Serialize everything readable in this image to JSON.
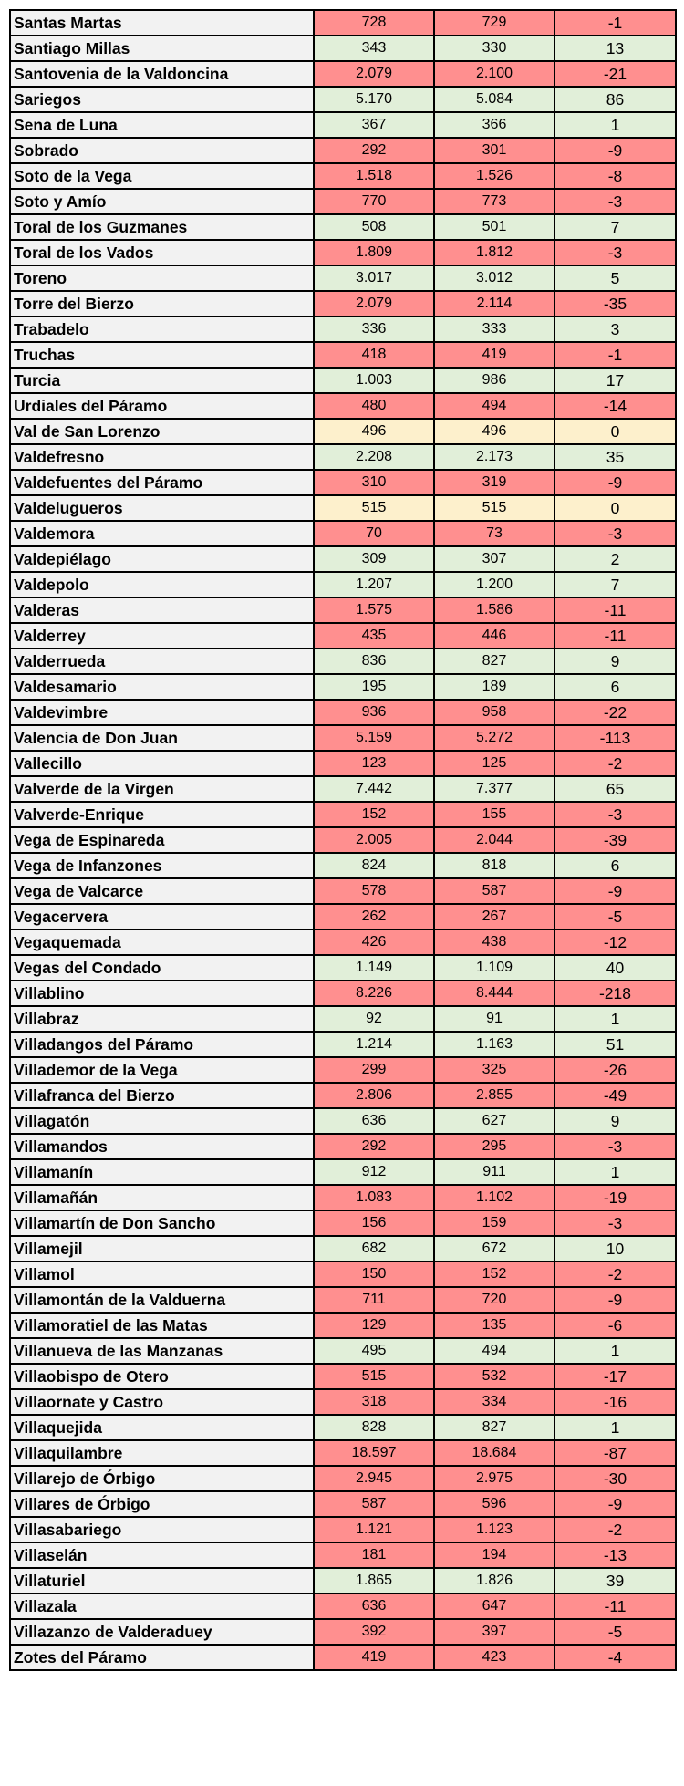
{
  "colors": {
    "negative": "#ff8f8f",
    "positive": "#e1efd9",
    "zero": "#fdf0cc",
    "name_cell": "#f2f2f2"
  },
  "rows": [
    {
      "name": "Santas Martas",
      "a": "728",
      "b": "729",
      "d": "-1",
      "t": "neg"
    },
    {
      "name": "Santiago Millas",
      "a": "343",
      "b": "330",
      "d": "13",
      "t": "pos"
    },
    {
      "name": "Santovenia de la Valdoncina",
      "a": "2.079",
      "b": "2.100",
      "d": "-21",
      "t": "neg"
    },
    {
      "name": "Sariegos",
      "a": "5.170",
      "b": "5.084",
      "d": "86",
      "t": "pos"
    },
    {
      "name": "Sena de Luna",
      "a": "367",
      "b": "366",
      "d": "1",
      "t": "pos"
    },
    {
      "name": "Sobrado",
      "a": "292",
      "b": "301",
      "d": "-9",
      "t": "neg"
    },
    {
      "name": "Soto de la Vega",
      "a": "1.518",
      "b": "1.526",
      "d": "-8",
      "t": "neg"
    },
    {
      "name": "Soto y Amío",
      "a": "770",
      "b": "773",
      "d": "-3",
      "t": "neg"
    },
    {
      "name": "Toral de los Guzmanes",
      "a": "508",
      "b": "501",
      "d": "7",
      "t": "pos"
    },
    {
      "name": "Toral de los Vados",
      "a": "1.809",
      "b": "1.812",
      "d": "-3",
      "t": "neg"
    },
    {
      "name": "Toreno",
      "a": "3.017",
      "b": "3.012",
      "d": "5",
      "t": "pos"
    },
    {
      "name": "Torre del Bierzo",
      "a": "2.079",
      "b": "2.114",
      "d": "-35",
      "t": "neg"
    },
    {
      "name": "Trabadelo",
      "a": "336",
      "b": "333",
      "d": "3",
      "t": "pos"
    },
    {
      "name": "Truchas",
      "a": "418",
      "b": "419",
      "d": "-1",
      "t": "neg"
    },
    {
      "name": "Turcia",
      "a": "1.003",
      "b": "986",
      "d": "17",
      "t": "pos"
    },
    {
      "name": "Urdiales del Páramo",
      "a": "480",
      "b": "494",
      "d": "-14",
      "t": "neg"
    },
    {
      "name": "Val de San Lorenzo",
      "a": "496",
      "b": "496",
      "d": "0",
      "t": "zero"
    },
    {
      "name": "Valdefresno",
      "a": "2.208",
      "b": "2.173",
      "d": "35",
      "t": "pos"
    },
    {
      "name": "Valdefuentes del Páramo",
      "a": "310",
      "b": "319",
      "d": "-9",
      "t": "neg"
    },
    {
      "name": "Valdelugueros",
      "a": "515",
      "b": "515",
      "d": "0",
      "t": "zero"
    },
    {
      "name": "Valdemora",
      "a": "70",
      "b": "73",
      "d": "-3",
      "t": "neg"
    },
    {
      "name": "Valdepiélago",
      "a": "309",
      "b": "307",
      "d": "2",
      "t": "pos"
    },
    {
      "name": "Valdepolo",
      "a": "1.207",
      "b": "1.200",
      "d": "7",
      "t": "pos"
    },
    {
      "name": "Valderas",
      "a": "1.575",
      "b": "1.586",
      "d": "-11",
      "t": "neg"
    },
    {
      "name": "Valderrey",
      "a": "435",
      "b": "446",
      "d": "-11",
      "t": "neg"
    },
    {
      "name": "Valderrueda",
      "a": "836",
      "b": "827",
      "d": "9",
      "t": "pos"
    },
    {
      "name": "Valdesamario",
      "a": "195",
      "b": "189",
      "d": "6",
      "t": "pos"
    },
    {
      "name": "Valdevimbre",
      "a": "936",
      "b": "958",
      "d": "-22",
      "t": "neg"
    },
    {
      "name": "Valencia de Don Juan",
      "a": "5.159",
      "b": "5.272",
      "d": "-113",
      "t": "neg"
    },
    {
      "name": "Vallecillo",
      "a": "123",
      "b": "125",
      "d": "-2",
      "t": "neg"
    },
    {
      "name": "Valverde de la Virgen",
      "a": "7.442",
      "b": "7.377",
      "d": "65",
      "t": "pos"
    },
    {
      "name": "Valverde-Enrique",
      "a": "152",
      "b": "155",
      "d": "-3",
      "t": "neg"
    },
    {
      "name": "Vega de Espinareda",
      "a": "2.005",
      "b": "2.044",
      "d": "-39",
      "t": "neg"
    },
    {
      "name": "Vega de Infanzones",
      "a": "824",
      "b": "818",
      "d": "6",
      "t": "pos"
    },
    {
      "name": "Vega de Valcarce",
      "a": "578",
      "b": "587",
      "d": "-9",
      "t": "neg"
    },
    {
      "name": "Vegacervera",
      "a": "262",
      "b": "267",
      "d": "-5",
      "t": "neg"
    },
    {
      "name": "Vegaquemada",
      "a": "426",
      "b": "438",
      "d": "-12",
      "t": "neg"
    },
    {
      "name": "Vegas del Condado",
      "a": "1.149",
      "b": "1.109",
      "d": "40",
      "t": "pos"
    },
    {
      "name": "Villablino",
      "a": "8.226",
      "b": "8.444",
      "d": "-218",
      "t": "neg"
    },
    {
      "name": "Villabraz",
      "a": "92",
      "b": "91",
      "d": "1",
      "t": "pos"
    },
    {
      "name": "Villadangos del Páramo",
      "a": "1.214",
      "b": "1.163",
      "d": "51",
      "t": "pos"
    },
    {
      "name": "Villademor de la Vega",
      "a": "299",
      "b": "325",
      "d": "-26",
      "t": "neg"
    },
    {
      "name": "Villafranca del Bierzo",
      "a": "2.806",
      "b": "2.855",
      "d": "-49",
      "t": "neg"
    },
    {
      "name": "Villagatón",
      "a": "636",
      "b": "627",
      "d": "9",
      "t": "pos"
    },
    {
      "name": "Villamandos",
      "a": "292",
      "b": "295",
      "d": "-3",
      "t": "neg"
    },
    {
      "name": "Villamanín",
      "a": "912",
      "b": "911",
      "d": "1",
      "t": "pos"
    },
    {
      "name": "Villamañán",
      "a": "1.083",
      "b": "1.102",
      "d": "-19",
      "t": "neg"
    },
    {
      "name": "Villamartín de Don Sancho",
      "a": "156",
      "b": "159",
      "d": "-3",
      "t": "neg"
    },
    {
      "name": "Villamejil",
      "a": "682",
      "b": "672",
      "d": "10",
      "t": "pos"
    },
    {
      "name": "Villamol",
      "a": "150",
      "b": "152",
      "d": "-2",
      "t": "neg"
    },
    {
      "name": "Villamontán de la Valduerna",
      "a": "711",
      "b": "720",
      "d": "-9",
      "t": "neg"
    },
    {
      "name": "Villamoratiel de las Matas",
      "a": "129",
      "b": "135",
      "d": "-6",
      "t": "neg"
    },
    {
      "name": "Villanueva de las Manzanas",
      "a": "495",
      "b": "494",
      "d": "1",
      "t": "pos"
    },
    {
      "name": "Villaobispo de Otero",
      "a": "515",
      "b": "532",
      "d": "-17",
      "t": "neg"
    },
    {
      "name": "Villaornate y Castro",
      "a": "318",
      "b": "334",
      "d": "-16",
      "t": "neg"
    },
    {
      "name": "Villaquejida",
      "a": "828",
      "b": "827",
      "d": "1",
      "t": "pos"
    },
    {
      "name": "Villaquilambre",
      "a": "18.597",
      "b": "18.684",
      "d": "-87",
      "t": "neg"
    },
    {
      "name": "Villarejo de Órbigo",
      "a": "2.945",
      "b": "2.975",
      "d": "-30",
      "t": "neg"
    },
    {
      "name": "Villares de Órbigo",
      "a": "587",
      "b": "596",
      "d": "-9",
      "t": "neg"
    },
    {
      "name": "Villasabariego",
      "a": "1.121",
      "b": "1.123",
      "d": "-2",
      "t": "neg"
    },
    {
      "name": "Villaselán",
      "a": "181",
      "b": "194",
      "d": "-13",
      "t": "neg"
    },
    {
      "name": "Villaturiel",
      "a": "1.865",
      "b": "1.826",
      "d": "39",
      "t": "pos"
    },
    {
      "name": "Villazala",
      "a": "636",
      "b": "647",
      "d": "-11",
      "t": "neg"
    },
    {
      "name": "Villazanzo de Valderaduey",
      "a": "392",
      "b": "397",
      "d": "-5",
      "t": "neg"
    },
    {
      "name": "Zotes del Páramo",
      "a": "419",
      "b": "423",
      "d": "-4",
      "t": "neg"
    }
  ]
}
